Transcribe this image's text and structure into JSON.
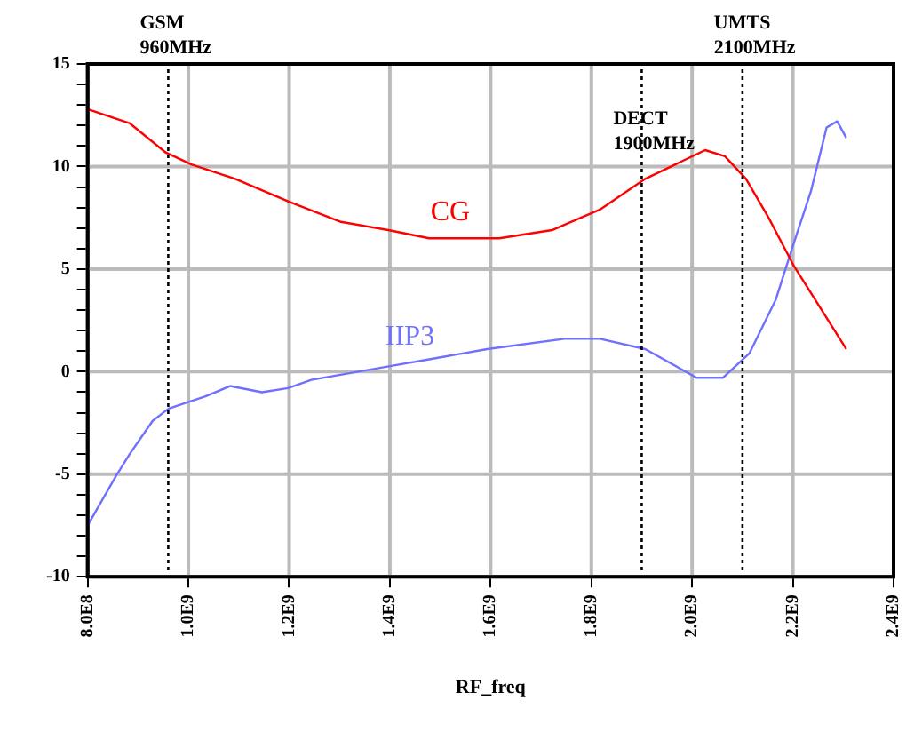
{
  "chart_data": {
    "type": "line",
    "xlabel": "RF_freq",
    "xlim": [
      800000000,
      2400000000
    ],
    "xticks": [
      {
        "value": 800000000,
        "label": "8.0E8"
      },
      {
        "value": 1000000000,
        "label": "1.0E9"
      },
      {
        "value": 1200000000,
        "label": "1.2E9"
      },
      {
        "value": 1400000000,
        "label": "1.4E9"
      },
      {
        "value": 1600000000,
        "label": "1.6E9"
      },
      {
        "value": 1800000000,
        "label": "1.8E9"
      },
      {
        "value": 2000000000,
        "label": "2.0E9"
      },
      {
        "value": 2200000000,
        "label": "2.2E9"
      },
      {
        "value": 2400000000,
        "label": "2.4E9"
      }
    ],
    "ylim": [
      -10,
      15
    ],
    "yticks": [
      -10,
      {
        "value": -9,
        "label": null
      },
      {
        "value": -8,
        "label": null
      },
      {
        "value": -7,
        "label": null
      },
      {
        "value": -6,
        "label": null
      },
      -5,
      {
        "value": -4,
        "label": null
      },
      {
        "value": -3,
        "label": null
      },
      {
        "value": -2,
        "label": null
      },
      {
        "value": -1,
        "label": null
      },
      0,
      {
        "value": 1,
        "label": null
      },
      {
        "value": 2,
        "label": null
      },
      {
        "value": 3,
        "label": null
      },
      {
        "value": 4,
        "label": null
      },
      5,
      {
        "value": 6,
        "label": null
      },
      {
        "value": 7,
        "label": null
      },
      {
        "value": 8,
        "label": null
      },
      {
        "value": 9,
        "label": null
      },
      10,
      {
        "value": 11,
        "label": null
      },
      {
        "value": 12,
        "label": null
      },
      {
        "value": 13,
        "label": null
      },
      {
        "value": 14,
        "label": null
      },
      15
    ],
    "grid": true,
    "legend": false,
    "marker": "none",
    "line_style": "solid",
    "series": [
      {
        "name": "CG",
        "color": "#ff0000",
        "x": [
          800000000,
          884000000,
          954000000,
          1006000000,
          1093000000,
          1198000000,
          1303000000,
          1397000000,
          1478000000,
          1617000000,
          1722000000,
          1817000000,
          1907000000,
          2026000000,
          2065000000,
          2107000000,
          2152000000,
          2201000000,
          2306000000
        ],
        "values": [
          12.8,
          12.1,
          10.7,
          10.1,
          9.4,
          8.3,
          7.3,
          6.9,
          6.5,
          6.5,
          6.9,
          7.9,
          9.4,
          10.8,
          10.5,
          9.4,
          7.5,
          5.2,
          1.1
        ]
      },
      {
        "name": "IIP3",
        "color": "#7070ff",
        "x": [
          800000000,
          856000000,
          884000000,
          929000000,
          961000000,
          1034000000,
          1083000000,
          1146000000,
          1198000000,
          1244000000,
          1408000000,
          1478000000,
          1593000000,
          1747000000,
          1817000000,
          1907000000,
          2009000000,
          2061000000,
          2114000000,
          2166000000,
          2201000000,
          2236000000,
          2267000000,
          2288000000,
          2306000000
        ],
        "values": [
          -7.5,
          -5.1,
          -4.0,
          -2.4,
          -1.8,
          -1.2,
          -0.7,
          -1.0,
          -0.8,
          -0.4,
          0.3,
          0.6,
          1.1,
          1.6,
          1.6,
          1.1,
          -0.3,
          -0.3,
          0.9,
          3.5,
          6.2,
          8.8,
          11.9,
          12.2,
          11.4
        ]
      }
    ],
    "ref_lines": [
      {
        "axis": "x",
        "value": 960000000,
        "label": "GSM\n960MHz",
        "color": "#000000",
        "line_style": "dotted"
      },
      {
        "axis": "x",
        "value": 1900000000,
        "label": "DECT\n1900MHz",
        "color": "#000000",
        "line_style": "dotted"
      },
      {
        "axis": "x",
        "value": 2100000000,
        "label": "UMTS\n2100MHz",
        "color": "#000000",
        "line_style": "dotted"
      }
    ]
  }
}
